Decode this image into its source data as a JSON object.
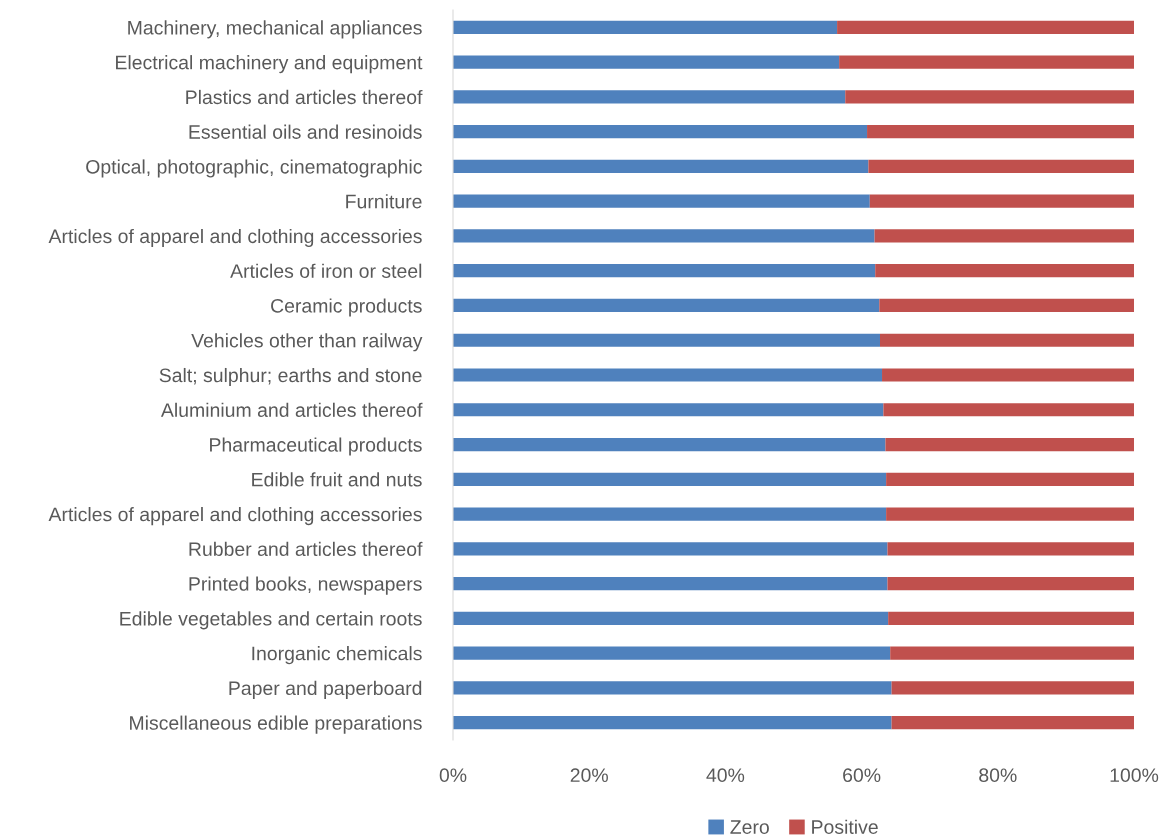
{
  "chart_data": {
    "type": "bar",
    "orientation": "horizontal",
    "stacked": true,
    "categories": [
      "Machinery, mechanical appliances",
      "Electrical machinery and equipment",
      "Plastics and articles thereof",
      "Essential oils and resinoids",
      "Optical, photographic, cinematographic",
      "Furniture",
      "Articles of apparel and clothing accessories",
      "Articles of iron or steel",
      "Ceramic products",
      "Vehicles other than railway",
      "Salt; sulphur; earths and stone",
      "Aluminium and articles thereof",
      "Pharmaceutical products",
      "Edible fruit and nuts",
      "Articles of apparel and clothing accessories",
      "Rubber and articles thereof",
      "Printed books, newspapers",
      "Edible vegetables and certain roots",
      "Inorganic chemicals",
      "Paper and paperboard",
      "Miscellaneous edible preparations"
    ],
    "series": [
      {
        "name": "Zero",
        "color": "#4f81bd",
        "values": [
          56.4,
          56.7,
          57.6,
          60.8,
          61.0,
          61.2,
          61.9,
          62.0,
          62.6,
          62.7,
          63.0,
          63.2,
          63.5,
          63.6,
          63.6,
          63.8,
          63.8,
          63.9,
          64.2,
          64.4,
          64.4
        ]
      },
      {
        "name": "Positive",
        "color": "#c0504d",
        "values": [
          43.6,
          43.3,
          42.4,
          39.2,
          39.0,
          38.8,
          38.1,
          38.0,
          37.4,
          37.3,
          37.0,
          36.8,
          36.5,
          36.4,
          36.4,
          36.2,
          36.2,
          36.1,
          35.8,
          35.6,
          35.6
        ]
      }
    ],
    "xlim": [
      0,
      100
    ],
    "xticks": [
      {
        "value": 0,
        "label": "0%"
      },
      {
        "value": 20,
        "label": "20%"
      },
      {
        "value": 40,
        "label": "40%"
      },
      {
        "value": 60,
        "label": "60%"
      },
      {
        "value": 80,
        "label": "80%"
      },
      {
        "value": 100,
        "label": "100%"
      }
    ],
    "grid": false,
    "legend": "bottom"
  }
}
